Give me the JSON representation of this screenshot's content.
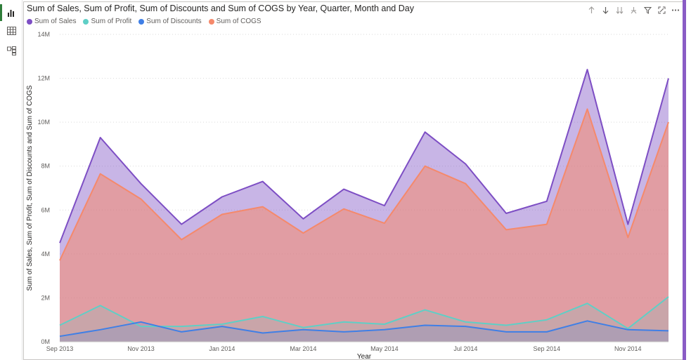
{
  "visual": {
    "title": "Sum of Sales, Sum of Profit, Sum of Discounts and Sum of COGS by Year, Quarter, Month and Day"
  },
  "icons": {
    "rail": [
      "bar-chart-icon",
      "table-icon",
      "model-icon"
    ],
    "toolbar": [
      "drill-up-icon",
      "drill-down-icon",
      "expand-all-icon",
      "expand-next-icon",
      "filter-icon",
      "focus-mode-icon",
      "more-options-icon"
    ]
  },
  "colors": {
    "sales": "#7d4ec4",
    "profit": "#5fcfc6",
    "discounts": "#3f7fe6",
    "cogs": "#f5896b",
    "accent": "#2f7d3a"
  },
  "chart_data": {
    "type": "area",
    "title": "Sum of Sales, Sum of Profit, Sum of Discounts and Sum of COGS by Year, Quarter, Month and Day",
    "xlabel": "Year",
    "ylabel": "Sum of Sales, Sum of Profit, Sum of Discounts and Sum of COGS",
    "ylim": [
      0,
      14000000
    ],
    "yticks": [
      "0M",
      "2M",
      "4M",
      "6M",
      "8M",
      "10M",
      "12M",
      "14M"
    ],
    "x": [
      "Sep 2013",
      "Oct 2013",
      "Nov 2013",
      "Dec 2013",
      "Jan 2014",
      "Feb 2014",
      "Mar 2014",
      "Apr 2014",
      "May 2014",
      "Jun 2014",
      "Jul 2014",
      "Aug 2014",
      "Sep 2014",
      "Oct 2014",
      "Nov 2014",
      "Dec 2014"
    ],
    "xtick_labels": [
      "Sep 2013",
      "Nov 2013",
      "Jan 2014",
      "Mar 2014",
      "May 2014",
      "Jul 2014",
      "Sep 2014",
      "Nov 2014"
    ],
    "legend_position": "top-left",
    "series": [
      {
        "name": "Sum of  Sales",
        "values": [
          4500000,
          9300000,
          7200000,
          5350000,
          6600000,
          7300000,
          5600000,
          6950000,
          6200000,
          9550000,
          8100000,
          5850000,
          6400000,
          12400000,
          5350000,
          12000000
        ]
      },
      {
        "name": "Sum of Profit",
        "values": [
          750000,
          1650000,
          700000,
          700000,
          800000,
          1150000,
          650000,
          900000,
          800000,
          1450000,
          900000,
          750000,
          1000000,
          1750000,
          600000,
          2050000
        ]
      },
      {
        "name": "Sum of Discounts",
        "values": [
          250000,
          550000,
          900000,
          450000,
          700000,
          400000,
          550000,
          450000,
          550000,
          750000,
          700000,
          450000,
          450000,
          950000,
          550000,
          500000
        ]
      },
      {
        "name": "Sum of COGS",
        "values": [
          3700000,
          7650000,
          6500000,
          4650000,
          5800000,
          6150000,
          4950000,
          6050000,
          5400000,
          8000000,
          7200000,
          5100000,
          5350000,
          10600000,
          4750000,
          10000000
        ]
      }
    ]
  }
}
